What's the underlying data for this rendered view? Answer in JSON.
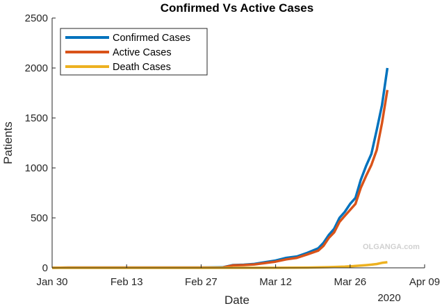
{
  "chart_data": {
    "type": "line",
    "title": "Confirmed Vs Active Cases",
    "xlabel": "Date",
    "ylabel": "Patients",
    "year_label": "2020",
    "ylim": [
      0,
      2500
    ],
    "yticks": [
      0,
      500,
      1000,
      1500,
      2000,
      2500
    ],
    "xlim": [
      "2020-01-30",
      "2020-04-09"
    ],
    "xticks": [
      {
        "date": "2020-01-30",
        "label": "Jan 30"
      },
      {
        "date": "2020-02-13",
        "label": "Feb 13"
      },
      {
        "date": "2020-02-27",
        "label": "Feb 27"
      },
      {
        "date": "2020-03-12",
        "label": "Mar 12"
      },
      {
        "date": "2020-03-26",
        "label": "Mar 26"
      },
      {
        "date": "2020-04-09",
        "label": "Apr 09"
      }
    ],
    "grid": false,
    "legend_position": "top-left",
    "watermark": "OLGANGA.com",
    "series": [
      {
        "name": "Confirmed Cases",
        "color": "#0072BD",
        "points": [
          [
            "2020-01-30",
            1
          ],
          [
            "2020-02-02",
            3
          ],
          [
            "2020-02-13",
            3
          ],
          [
            "2020-02-27",
            3
          ],
          [
            "2020-03-02",
            5
          ],
          [
            "2020-03-04",
            28
          ],
          [
            "2020-03-06",
            31
          ],
          [
            "2020-03-08",
            39
          ],
          [
            "2020-03-10",
            56
          ],
          [
            "2020-03-12",
            73
          ],
          [
            "2020-03-14",
            100
          ],
          [
            "2020-03-16",
            114
          ],
          [
            "2020-03-18",
            151
          ],
          [
            "2020-03-20",
            195
          ],
          [
            "2020-03-21",
            250
          ],
          [
            "2020-03-22",
            330
          ],
          [
            "2020-03-23",
            390
          ],
          [
            "2020-03-24",
            500
          ],
          [
            "2020-03-25",
            560
          ],
          [
            "2020-03-26",
            640
          ],
          [
            "2020-03-27",
            700
          ],
          [
            "2020-03-28",
            880
          ],
          [
            "2020-03-29",
            1020
          ],
          [
            "2020-03-30",
            1140
          ],
          [
            "2020-03-31",
            1380
          ],
          [
            "2020-04-01",
            1630
          ],
          [
            "2020-04-02",
            2000
          ]
        ]
      },
      {
        "name": "Active Cases",
        "color": "#D95319",
        "points": [
          [
            "2020-01-30",
            1
          ],
          [
            "2020-02-02",
            3
          ],
          [
            "2020-02-13",
            3
          ],
          [
            "2020-02-27",
            3
          ],
          [
            "2020-03-02",
            2
          ],
          [
            "2020-03-04",
            25
          ],
          [
            "2020-03-06",
            28
          ],
          [
            "2020-03-08",
            34
          ],
          [
            "2020-03-10",
            48
          ],
          [
            "2020-03-12",
            62
          ],
          [
            "2020-03-14",
            85
          ],
          [
            "2020-03-16",
            100
          ],
          [
            "2020-03-18",
            135
          ],
          [
            "2020-03-20",
            172
          ],
          [
            "2020-03-21",
            220
          ],
          [
            "2020-03-22",
            300
          ],
          [
            "2020-03-23",
            355
          ],
          [
            "2020-03-24",
            460
          ],
          [
            "2020-03-25",
            520
          ],
          [
            "2020-03-26",
            580
          ],
          [
            "2020-03-27",
            640
          ],
          [
            "2020-03-28",
            800
          ],
          [
            "2020-03-29",
            920
          ],
          [
            "2020-03-30",
            1030
          ],
          [
            "2020-03-31",
            1180
          ],
          [
            "2020-04-01",
            1450
          ],
          [
            "2020-04-02",
            1780
          ]
        ]
      },
      {
        "name": "Death Cases",
        "color": "#EDB120",
        "points": [
          [
            "2020-01-30",
            0
          ],
          [
            "2020-02-13",
            0
          ],
          [
            "2020-02-27",
            0
          ],
          [
            "2020-03-12",
            1
          ],
          [
            "2020-03-18",
            3
          ],
          [
            "2020-03-22",
            7
          ],
          [
            "2020-03-25",
            12
          ],
          [
            "2020-03-27",
            19
          ],
          [
            "2020-03-29",
            27
          ],
          [
            "2020-03-30",
            32
          ],
          [
            "2020-03-31",
            38
          ],
          [
            "2020-04-01",
            50
          ],
          [
            "2020-04-02",
            56
          ]
        ]
      }
    ]
  }
}
